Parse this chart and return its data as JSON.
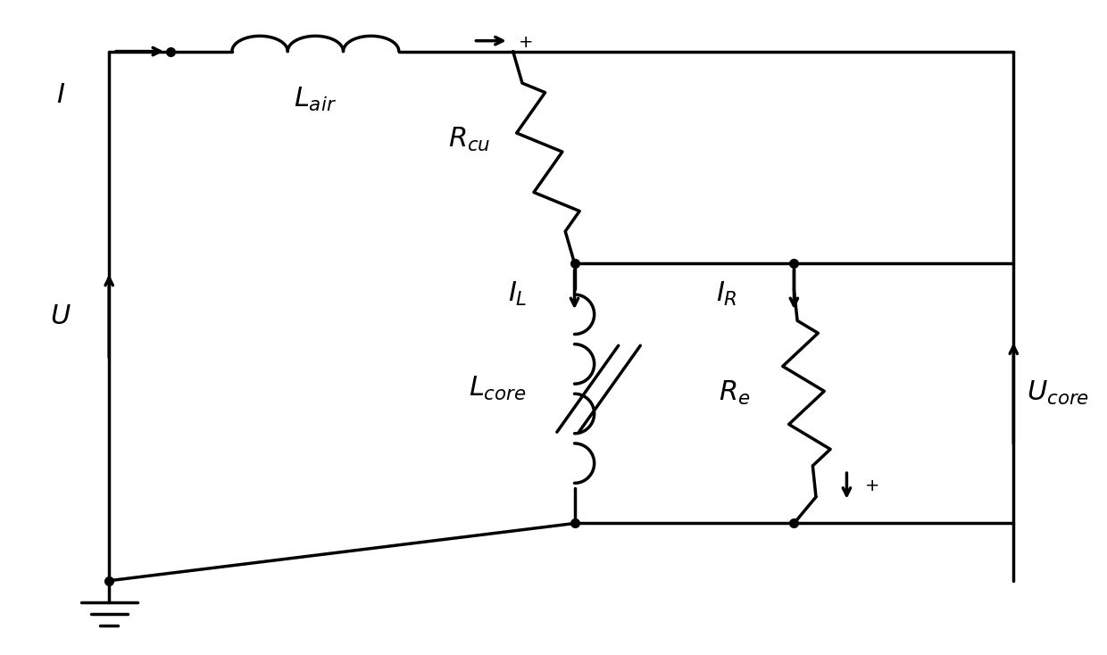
{
  "bg_color": "#ffffff",
  "line_color": "#000000",
  "lw": 2.5,
  "dot_size": 7,
  "figsize": [
    12.4,
    7.34
  ],
  "dpi": 100,
  "aspect": "auto",
  "xlim": [
    0,
    12.4
  ],
  "ylim": [
    0,
    7.34
  ]
}
